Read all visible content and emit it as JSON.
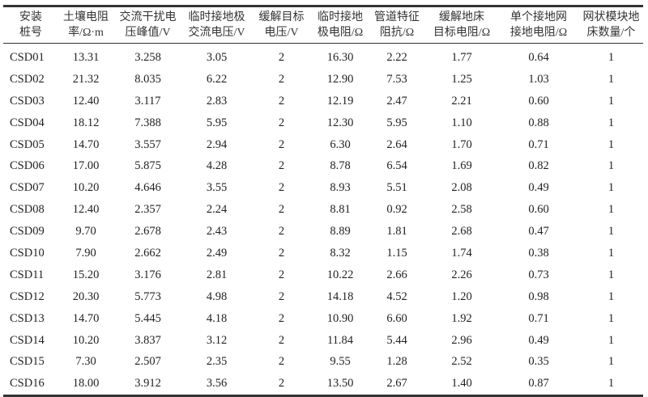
{
  "table": {
    "headers": [
      [
        "安装",
        "桩号"
      ],
      [
        "土壤电阻",
        "率/Ω·m"
      ],
      [
        "交流干扰电",
        "压峰值/V"
      ],
      [
        "临时接地极",
        "交流电压/V"
      ],
      [
        "缓解目标",
        "电压/V"
      ],
      [
        "临时接地",
        "极电阻/Ω"
      ],
      [
        "管道特征",
        "阻抗/Ω"
      ],
      [
        "缓解地床",
        "目标电阻/Ω"
      ],
      [
        "单个接地网",
        "接地电阻/Ω"
      ],
      [
        "网状模块地",
        "床数量/个"
      ]
    ],
    "rows": [
      [
        "CSD01",
        "13.31",
        "3.258",
        "3.05",
        "2",
        "16.30",
        "2.22",
        "1.77",
        "0.64",
        "1"
      ],
      [
        "CSD02",
        "21.32",
        "8.035",
        "6.22",
        "2",
        "12.90",
        "7.53",
        "1.25",
        "1.03",
        "1"
      ],
      [
        "CSD03",
        "12.40",
        "3.117",
        "2.83",
        "2",
        "12.19",
        "2.47",
        "2.21",
        "0.60",
        "1"
      ],
      [
        "CSD04",
        "18.12",
        "7.388",
        "5.95",
        "2",
        "12.30",
        "5.95",
        "1.10",
        "0.88",
        "1"
      ],
      [
        "CSD05",
        "14.70",
        "3.557",
        "2.94",
        "2",
        "6.30",
        "2.64",
        "1.70",
        "0.71",
        "1"
      ],
      [
        "CSD06",
        "17.00",
        "5.875",
        "4.28",
        "2",
        "8.78",
        "6.54",
        "1.69",
        "0.82",
        "1"
      ],
      [
        "CSD07",
        "10.20",
        "4.646",
        "3.55",
        "2",
        "8.93",
        "5.51",
        "2.08",
        "0.49",
        "1"
      ],
      [
        "CSD08",
        "12.40",
        "2.357",
        "2.24",
        "2",
        "8.81",
        "0.92",
        "2.58",
        "0.60",
        "1"
      ],
      [
        "CSD09",
        "9.70",
        "2.678",
        "2.43",
        "2",
        "8.89",
        "1.81",
        "2.68",
        "0.47",
        "1"
      ],
      [
        "CSD10",
        "7.90",
        "2.662",
        "2.49",
        "2",
        "8.32",
        "1.15",
        "1.74",
        "0.38",
        "1"
      ],
      [
        "CSD11",
        "15.20",
        "3.176",
        "2.81",
        "2",
        "10.22",
        "2.66",
        "2.26",
        "0.73",
        "1"
      ],
      [
        "CSD12",
        "20.30",
        "5.773",
        "4.98",
        "2",
        "14.18",
        "4.52",
        "1.20",
        "0.98",
        "1"
      ],
      [
        "CSD13",
        "14.70",
        "5.445",
        "4.18",
        "2",
        "10.90",
        "6.60",
        "1.92",
        "0.71",
        "1"
      ],
      [
        "CSD14",
        "10.20",
        "3.837",
        "3.12",
        "2",
        "11.84",
        "5.44",
        "2.96",
        "0.49",
        "1"
      ],
      [
        "CSD15",
        "7.30",
        "2.507",
        "2.35",
        "2",
        "9.55",
        "1.28",
        "2.52",
        "0.35",
        "1"
      ],
      [
        "CSD16",
        "18.00",
        "3.912",
        "3.56",
        "2",
        "13.50",
        "2.67",
        "1.40",
        "0.87",
        "1"
      ]
    ]
  }
}
